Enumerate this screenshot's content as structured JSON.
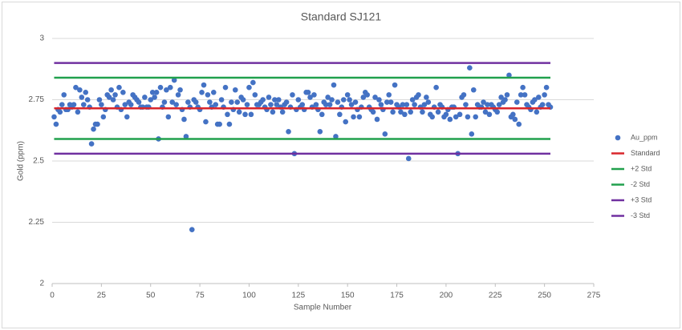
{
  "chart_data": {
    "type": "scatter",
    "title": "Standard SJ121",
    "xlabel": "Sample Number",
    "ylabel": "Gold (ppm)",
    "xlim": [
      0,
      275
    ],
    "xticks": [
      0,
      25,
      50,
      75,
      100,
      125,
      150,
      175,
      200,
      225,
      250,
      275
    ],
    "ylim": [
      2,
      3
    ],
    "yticks": [
      2,
      2.25,
      2.5,
      2.75,
      3
    ],
    "grid": true,
    "legend": "right",
    "series": [
      {
        "name": "Au_ppm",
        "mode": "markers",
        "color": "#4472c4",
        "x": [
          1,
          2,
          3,
          4,
          5,
          6,
          7,
          8,
          9,
          10,
          11,
          12,
          13,
          14,
          15,
          16,
          17,
          18,
          19,
          20,
          21,
          22,
          23,
          24,
          25,
          26,
          27,
          28,
          29,
          30,
          31,
          32,
          33,
          34,
          35,
          36,
          37,
          38,
          39,
          40,
          41,
          42,
          43,
          44,
          45,
          46,
          47,
          48,
          49,
          50,
          51,
          52,
          53,
          54,
          55,
          56,
          57,
          58,
          59,
          60,
          61,
          62,
          63,
          64,
          65,
          66,
          67,
          68,
          69,
          70,
          71,
          72,
          73,
          74,
          75,
          76,
          77,
          78,
          79,
          80,
          81,
          82,
          83,
          84,
          85,
          86,
          87,
          88,
          89,
          90,
          91,
          92,
          93,
          94,
          95,
          96,
          97,
          98,
          99,
          100,
          101,
          102,
          103,
          104,
          105,
          106,
          107,
          108,
          109,
          110,
          111,
          112,
          113,
          114,
          115,
          116,
          117,
          118,
          119,
          120,
          121,
          122,
          123,
          124,
          125,
          126,
          127,
          128,
          129,
          130,
          131,
          132,
          133,
          134,
          135,
          136,
          137,
          138,
          139,
          140,
          141,
          142,
          143,
          144,
          145,
          146,
          147,
          148,
          149,
          150,
          151,
          152,
          153,
          154,
          155,
          156,
          157,
          158,
          159,
          160,
          161,
          162,
          163,
          164,
          165,
          166,
          167,
          168,
          169,
          170,
          171,
          172,
          173,
          174,
          175,
          176,
          177,
          178,
          179,
          180,
          181,
          182,
          183,
          184,
          185,
          186,
          187,
          188,
          189,
          190,
          191,
          192,
          193,
          194,
          195,
          196,
          197,
          198,
          199,
          200,
          201,
          202,
          203,
          204,
          205,
          206,
          207,
          208,
          209,
          210,
          211,
          212,
          213,
          214,
          215,
          216,
          217,
          218,
          219,
          220,
          221,
          222,
          223,
          224,
          225,
          226,
          227,
          228,
          229,
          230,
          231,
          232,
          233,
          234,
          235,
          236,
          237,
          238,
          239,
          240,
          241,
          242,
          243,
          244,
          245,
          246,
          247,
          248,
          249,
          250,
          251,
          252,
          253
        ],
        "values": [
          2.68,
          2.65,
          2.71,
          2.7,
          2.73,
          2.77,
          2.71,
          2.71,
          2.73,
          2.72,
          2.73,
          2.8,
          2.7,
          2.79,
          2.76,
          2.73,
          2.78,
          2.75,
          2.72,
          2.57,
          2.63,
          2.65,
          2.65,
          2.75,
          2.73,
          2.68,
          2.71,
          2.77,
          2.76,
          2.79,
          2.75,
          2.77,
          2.72,
          2.8,
          2.71,
          2.78,
          2.73,
          2.68,
          2.74,
          2.73,
          2.77,
          2.76,
          2.75,
          2.74,
          2.72,
          2.72,
          2.76,
          2.72,
          2.72,
          2.75,
          2.78,
          2.76,
          2.78,
          2.59,
          2.8,
          2.72,
          2.74,
          2.79,
          2.68,
          2.8,
          2.74,
          2.83,
          2.73,
          2.77,
          2.79,
          2.71,
          2.67,
          2.6,
          2.74,
          2.72,
          2.22,
          2.75,
          2.74,
          2.72,
          2.71,
          2.78,
          2.81,
          2.66,
          2.77,
          2.74,
          2.72,
          2.78,
          2.73,
          2.65,
          2.65,
          2.75,
          2.72,
          2.8,
          2.69,
          2.65,
          2.74,
          2.71,
          2.79,
          2.74,
          2.7,
          2.76,
          2.75,
          2.69,
          2.73,
          2.8,
          2.69,
          2.82,
          2.77,
          2.73,
          2.73,
          2.74,
          2.75,
          2.72,
          2.71,
          2.76,
          2.73,
          2.7,
          2.75,
          2.73,
          2.75,
          2.72,
          2.7,
          2.73,
          2.74,
          2.62,
          2.72,
          2.77,
          2.53,
          2.71,
          2.75,
          2.72,
          2.73,
          2.71,
          2.78,
          2.78,
          2.76,
          2.72,
          2.77,
          2.73,
          2.71,
          2.62,
          2.69,
          2.74,
          2.73,
          2.76,
          2.73,
          2.75,
          2.81,
          2.6,
          2.74,
          2.69,
          2.72,
          2.75,
          2.66,
          2.77,
          2.75,
          2.73,
          2.68,
          2.74,
          2.71,
          2.68,
          2.72,
          2.76,
          2.78,
          2.77,
          2.72,
          2.71,
          2.7,
          2.76,
          2.67,
          2.75,
          2.73,
          2.71,
          2.61,
          2.74,
          2.77,
          2.74,
          2.7,
          2.81,
          2.73,
          2.72,
          2.7,
          2.73,
          2.69,
          2.73,
          2.51,
          2.7,
          2.75,
          2.73,
          2.76,
          2.77,
          2.72,
          2.7,
          2.73,
          2.76,
          2.74,
          2.69,
          2.68,
          2.72,
          2.8,
          2.7,
          2.73,
          2.72,
          2.68,
          2.69,
          2.71,
          2.67,
          2.72,
          2.72,
          2.68,
          2.53,
          2.69,
          2.76,
          2.77,
          2.73,
          2.68,
          2.88,
          2.61,
          2.79,
          2.68,
          2.73,
          2.72,
          2.72,
          2.74,
          2.7,
          2.73,
          2.69,
          2.73,
          2.72,
          2.71,
          2.7,
          2.73,
          2.76,
          2.74,
          2.75,
          2.77,
          2.85,
          2.68,
          2.69,
          2.67,
          2.74,
          2.65,
          2.77,
          2.8,
          2.77,
          2.73,
          2.72,
          2.71,
          2.74,
          2.75,
          2.7,
          2.76,
          2.72,
          2.73,
          2.77,
          2.8,
          2.73,
          2.72
        ]
      },
      {
        "name": "Standard",
        "mode": "lines",
        "color": "#d9262b",
        "x": [
          1,
          253
        ],
        "values": [
          2.715,
          2.715
        ]
      },
      {
        "name": "+2 Std",
        "mode": "lines",
        "color": "#21a04d",
        "x": [
          1,
          253
        ],
        "values": [
          2.84,
          2.84
        ]
      },
      {
        "name": "-2 Std",
        "mode": "lines",
        "color": "#21a04d",
        "x": [
          1,
          253
        ],
        "values": [
          2.59,
          2.59
        ]
      },
      {
        "name": "+3 Std",
        "mode": "lines",
        "color": "#7030a0",
        "x": [
          1,
          253
        ],
        "values": [
          2.9,
          2.9
        ]
      },
      {
        "name": "-3 Std",
        "mode": "lines",
        "color": "#7030a0",
        "x": [
          1,
          253
        ],
        "values": [
          2.53,
          2.53
        ]
      }
    ]
  }
}
